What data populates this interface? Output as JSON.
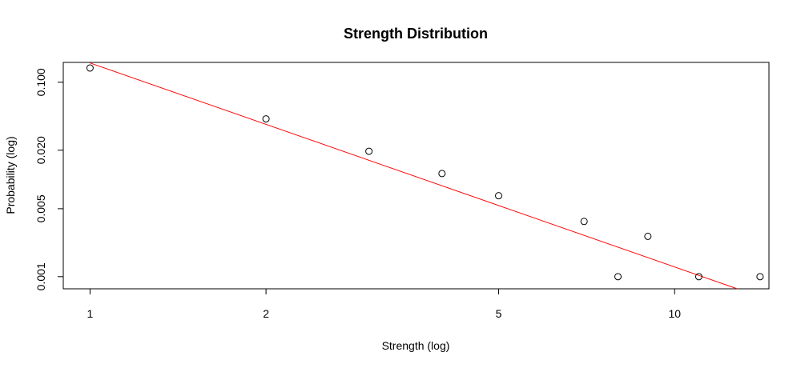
{
  "chart_data": {
    "type": "scatter",
    "title": "Strength Distribution",
    "xlabel": "Strength (log)",
    "ylabel": "Probability (log)",
    "x_scale": "log",
    "y_scale": "log",
    "xlim": [
      0.9,
      14.5
    ],
    "ylim": [
      0.00075,
      0.16
    ],
    "x_ticks": [
      1,
      2,
      5,
      10
    ],
    "x_tick_labels": [
      "1",
      "2",
      "5",
      "10"
    ],
    "y_ticks": [
      0.1,
      0.02,
      0.005,
      0.001
    ],
    "y_tick_labels": [
      "0.100",
      "0.020",
      "0.005",
      "0.001"
    ],
    "grid": false,
    "legend": "none",
    "points": [
      {
        "x": 1,
        "y": 0.14
      },
      {
        "x": 2,
        "y": 0.042
      },
      {
        "x": 3,
        "y": 0.0195
      },
      {
        "x": 4,
        "y": 0.0115
      },
      {
        "x": 5,
        "y": 0.0068
      },
      {
        "x": 7,
        "y": 0.0037
      },
      {
        "x": 8,
        "y": 0.001
      },
      {
        "x": 9,
        "y": 0.0026
      },
      {
        "x": 11,
        "y": 0.001
      },
      {
        "x": 14,
        "y": 0.001
      }
    ],
    "fit_line": {
      "x": [
        1,
        12.8
      ],
      "y": [
        0.158,
        0.00075
      ]
    },
    "point_color": "#000000",
    "line_color": "#ff0000"
  }
}
